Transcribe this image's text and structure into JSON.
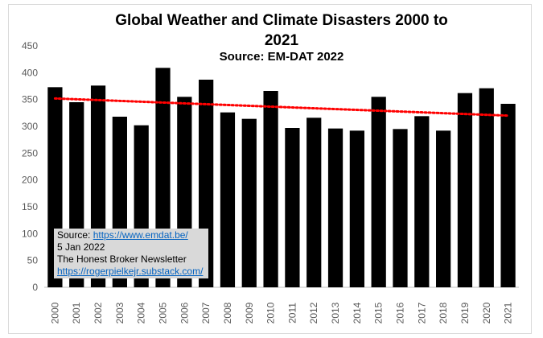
{
  "chart_data": {
    "type": "bar",
    "title": "Global Weather and Climate Disasters 2000 to 2021",
    "subtitle": "Source: EM-DAT 2022",
    "categories": [
      "2000",
      "2001",
      "2002",
      "2003",
      "2004",
      "2005",
      "2006",
      "2007",
      "2008",
      "2009",
      "2010",
      "2011",
      "2012",
      "2013",
      "2014",
      "2015",
      "2016",
      "2017",
      "2018",
      "2019",
      "2020",
      "2021"
    ],
    "values": [
      373,
      345,
      376,
      318,
      302,
      409,
      355,
      387,
      326,
      314,
      366,
      297,
      316,
      296,
      292,
      355,
      295,
      319,
      292,
      362,
      371,
      342
    ],
    "ylim": [
      0,
      450
    ],
    "yticks": [
      0,
      50,
      100,
      150,
      200,
      250,
      300,
      350,
      400,
      450
    ],
    "grid": false,
    "bar_color": "#000000",
    "trendline": {
      "style": "dotted",
      "color": "#ff0000",
      "start": 352,
      "end": 320
    }
  },
  "annotation": {
    "source_label": "Source: ",
    "source_link": "https://www.emdat.be/",
    "date": "5 Jan 2022",
    "newsletter": "The Honest Broker Newsletter",
    "newsletter_link": "https://rogerpielkejr.substack.com/"
  }
}
